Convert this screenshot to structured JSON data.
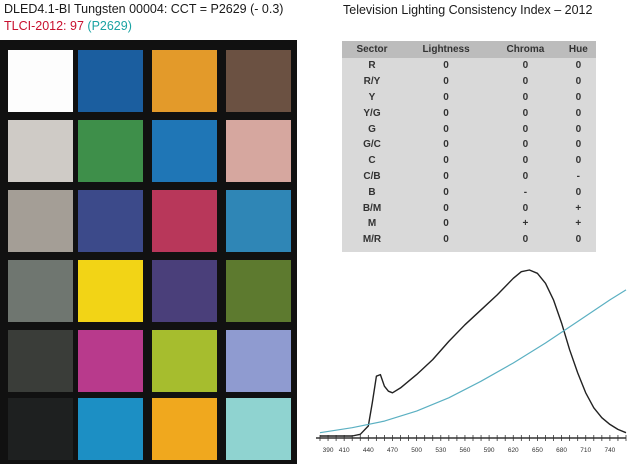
{
  "header": {
    "line1": "DLED4.1-BI Tungsten 00004: CCT = P2629 (- 0.3)",
    "tlci_label": "TLCI-2012: 97",
    "tlci_ref": "(P2629)"
  },
  "right_title": "Television Lighting Consistency Index – 2012",
  "checker_colors": [
    "#fdfdfd",
    "#1b5e9f",
    "#e39a2a",
    "#6b5142",
    "#cfcbc6",
    "#3e8f4a",
    "#1f76b6",
    "#d6a79f",
    "#a49e96",
    "#3c4a8a",
    "#b8375a",
    "#2f86b6",
    "#6f7670",
    "#f2d416",
    "#4a3f7a",
    "#5d7a2f",
    "#3a3d39",
    "#b83a8c",
    "#a6bd2e",
    "#8f9bd0",
    "#1e2020",
    "#1c8fc4",
    "#f0a81e",
    "#8fd3d0"
  ],
  "table": {
    "headers": [
      "Sector",
      "Lightness",
      "Chroma",
      "Hue"
    ],
    "rows": [
      [
        "R",
        "0",
        "0",
        "0"
      ],
      [
        "R/Y",
        "0",
        "0",
        "0"
      ],
      [
        "Y",
        "0",
        "0",
        "0"
      ],
      [
        "Y/G",
        "0",
        "0",
        "0"
      ],
      [
        "G",
        "0",
        "0",
        "0"
      ],
      [
        "G/C",
        "0",
        "0",
        "0"
      ],
      [
        "C",
        "0",
        "0",
        "0"
      ],
      [
        "C/B",
        "0",
        "0",
        "-"
      ],
      [
        "B",
        "0",
        "-",
        "0"
      ],
      [
        "B/M",
        "0",
        "0",
        "+"
      ],
      [
        "M",
        "0",
        "+",
        "+"
      ],
      [
        "M/R",
        "0",
        "0",
        "0"
      ]
    ]
  },
  "chart_data": {
    "type": "line",
    "x_ticks": [
      390,
      410,
      440,
      470,
      500,
      530,
      560,
      590,
      620,
      650,
      680,
      710,
      740
    ],
    "xlim": [
      380,
      760
    ],
    "ylim": [
      0,
      1
    ],
    "series": [
      {
        "color": "#222222",
        "x": [
          380,
          400,
          420,
          430,
          440,
          445,
          450,
          455,
          460,
          465,
          470,
          480,
          490,
          500,
          520,
          540,
          560,
          580,
          600,
          620,
          630,
          640,
          650,
          660,
          670,
          680,
          690,
          700,
          710,
          720,
          730,
          740,
          750,
          760
        ],
        "y": [
          0,
          0,
          0,
          0.01,
          0.06,
          0.2,
          0.36,
          0.37,
          0.3,
          0.27,
          0.26,
          0.29,
          0.33,
          0.37,
          0.46,
          0.57,
          0.67,
          0.76,
          0.85,
          0.95,
          0.99,
          1.0,
          0.98,
          0.92,
          0.82,
          0.68,
          0.52,
          0.38,
          0.26,
          0.17,
          0.11,
          0.07,
          0.04,
          0.02
        ]
      },
      {
        "color": "#5bb0c2",
        "x": [
          380,
          420,
          460,
          500,
          540,
          580,
          620,
          660,
          700,
          740,
          760
        ],
        "y": [
          0.02,
          0.05,
          0.09,
          0.15,
          0.23,
          0.33,
          0.44,
          0.56,
          0.69,
          0.82,
          0.88
        ]
      }
    ]
  }
}
